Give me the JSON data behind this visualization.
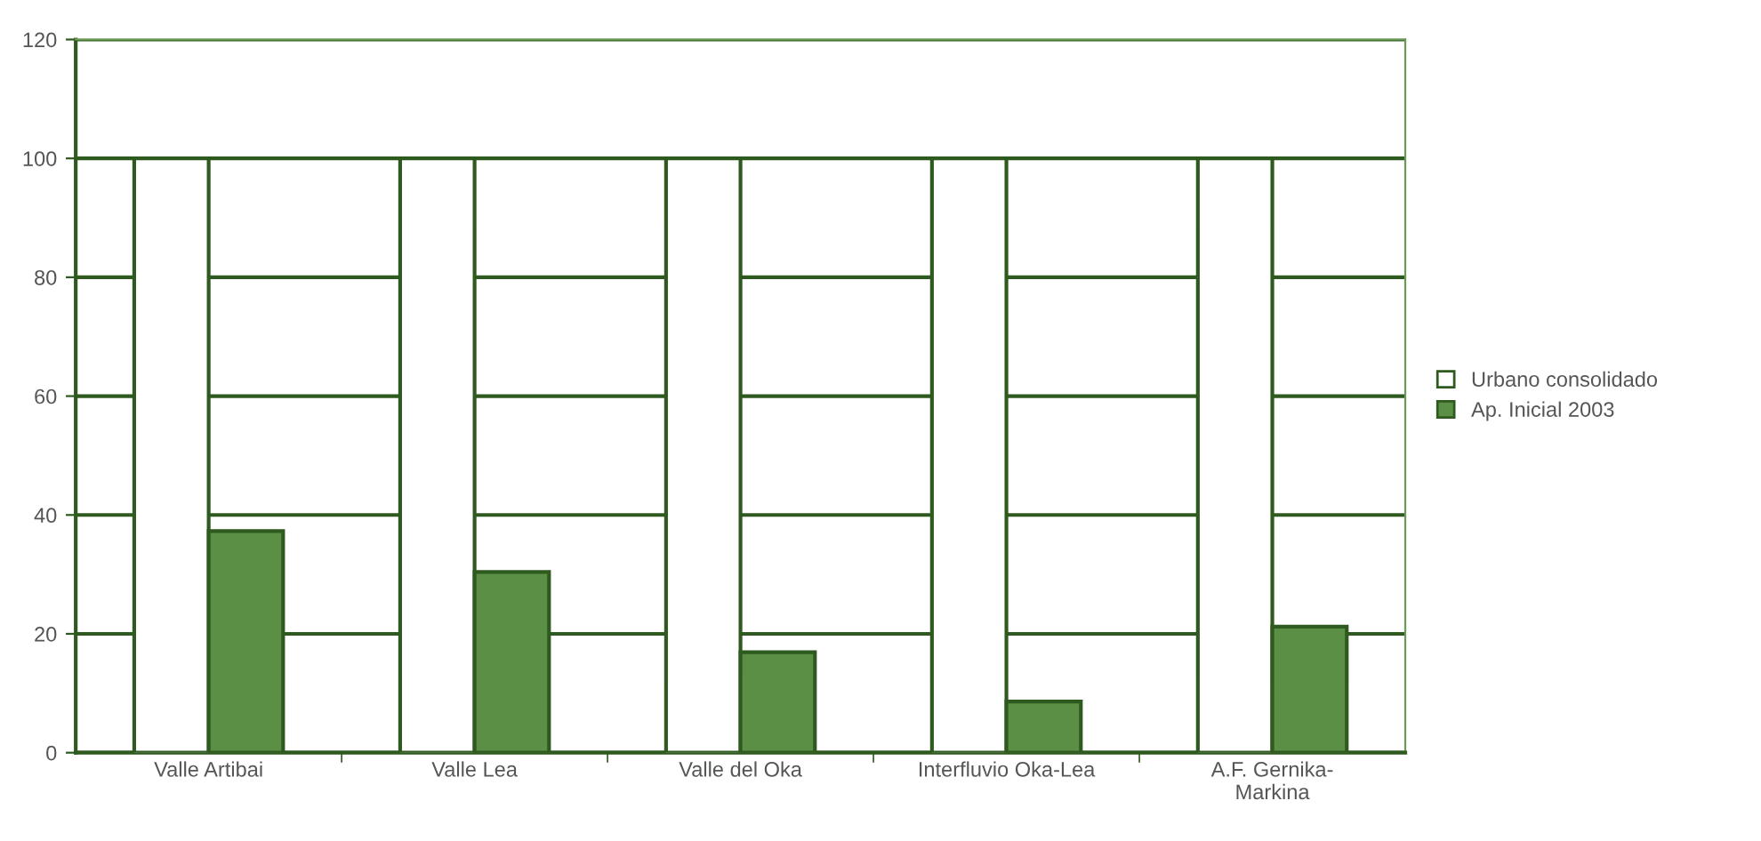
{
  "chart_data": {
    "type": "bar",
    "categories": [
      "Valle Artibai",
      "Valle Lea",
      "Valle del Oka",
      "Interfluvio Oka-Lea",
      "A.F. Gernika-\nMarkina"
    ],
    "series": [
      {
        "name": "Urbano consolidado",
        "color": "#ffffff",
        "values": [
          100,
          100,
          100,
          100,
          100
        ]
      },
      {
        "name": "Ap. Inicial 2003",
        "color": "#5a8f45",
        "values": [
          37.3,
          30.4,
          16.9,
          8.6,
          21.2
        ]
      }
    ],
    "ylim": [
      0,
      120
    ],
    "yticks": [
      0,
      20,
      40,
      60,
      80,
      100,
      120
    ],
    "grid": "y",
    "legend": "right"
  }
}
